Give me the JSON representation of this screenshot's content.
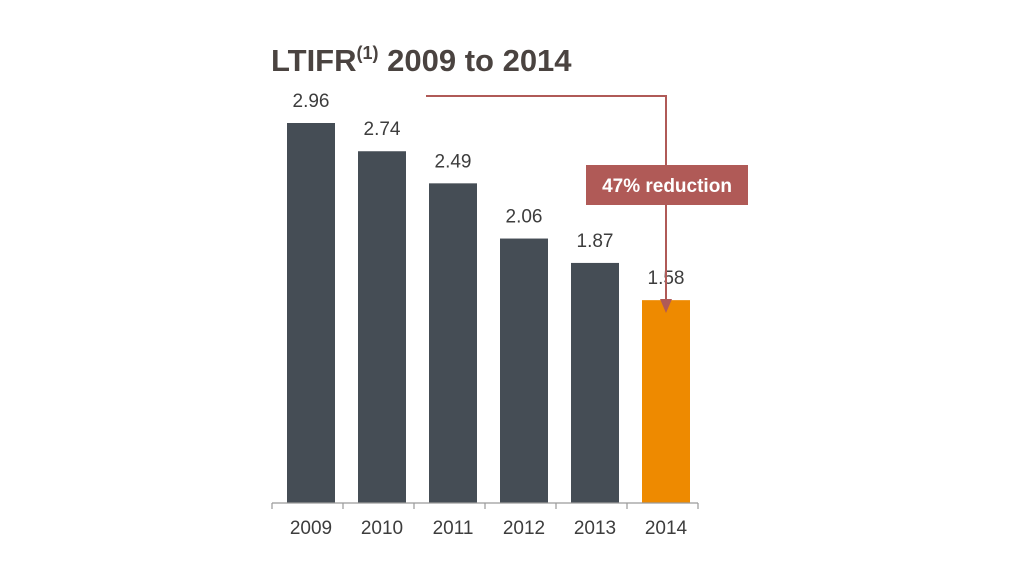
{
  "chart_data": {
    "type": "bar",
    "title": "LTIFR",
    "title_superscript": "(1)",
    "title_suffix": " 2009 to 2014",
    "categories": [
      "2009",
      "2010",
      "2011",
      "2012",
      "2013",
      "2014"
    ],
    "values": [
      2.96,
      2.74,
      2.49,
      2.06,
      1.87,
      1.58
    ],
    "value_labels": [
      "2.96",
      "2.74",
      "2.49",
      "2.06",
      "1.87",
      "1.58"
    ],
    "highlight_category": "2014",
    "annotation": "47% reduction",
    "grid": false,
    "ylim": [
      0,
      2.96
    ]
  },
  "colors": {
    "bar": "#454d55",
    "highlight": "#ee8a00",
    "annotation": "#b05a57",
    "axis": "#9a9a9a",
    "title": "#4a4340"
  }
}
